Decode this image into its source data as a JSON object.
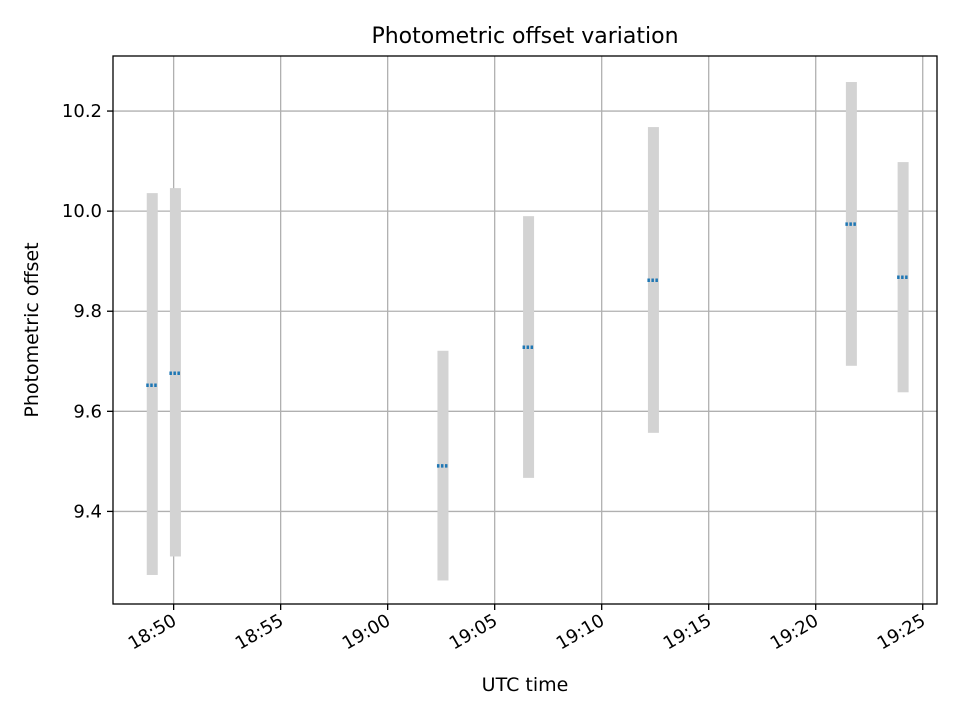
{
  "chart_data": {
    "type": "scatter",
    "title": "Photometric offset variation",
    "xlabel": "UTC time",
    "ylabel": "Photometric offset",
    "x_ticks": [
      "18:50",
      "18:55",
      "19:00",
      "19:05",
      "19:10",
      "19:15",
      "19:20",
      "19:25"
    ],
    "y_ticks": [
      "9.4",
      "9.6",
      "9.8",
      "10.0",
      "10.2"
    ],
    "xlim": [
      "18:47:10",
      "19:25:40"
    ],
    "ylim": [
      9.215,
      10.31
    ],
    "grid": true,
    "colors": {
      "point": "#1f77b4",
      "errorbar": "#d3d3d3",
      "grid": "#b0b0b0",
      "axis": "#000000"
    },
    "series": [
      {
        "points": [
          {
            "x": "18:49:00",
            "y": 9.652,
            "yerr_low": 9.273,
            "yerr_high": 10.036
          },
          {
            "x": "18:50:05",
            "y": 9.676,
            "yerr_low": 9.31,
            "yerr_high": 10.046
          },
          {
            "x": "19:02:35",
            "y": 9.491,
            "yerr_low": 9.262,
            "yerr_high": 9.721
          },
          {
            "x": "19:06:35",
            "y": 9.728,
            "yerr_low": 9.467,
            "yerr_high": 9.99
          },
          {
            "x": "19:12:25",
            "y": 9.862,
            "yerr_low": 9.557,
            "yerr_high": 10.168
          },
          {
            "x": "19:21:40",
            "y": 9.974,
            "yerr_low": 9.691,
            "yerr_high": 10.258
          },
          {
            "x": "19:24:05",
            "y": 9.868,
            "yerr_low": 9.638,
            "yerr_high": 10.098
          }
        ]
      }
    ]
  }
}
